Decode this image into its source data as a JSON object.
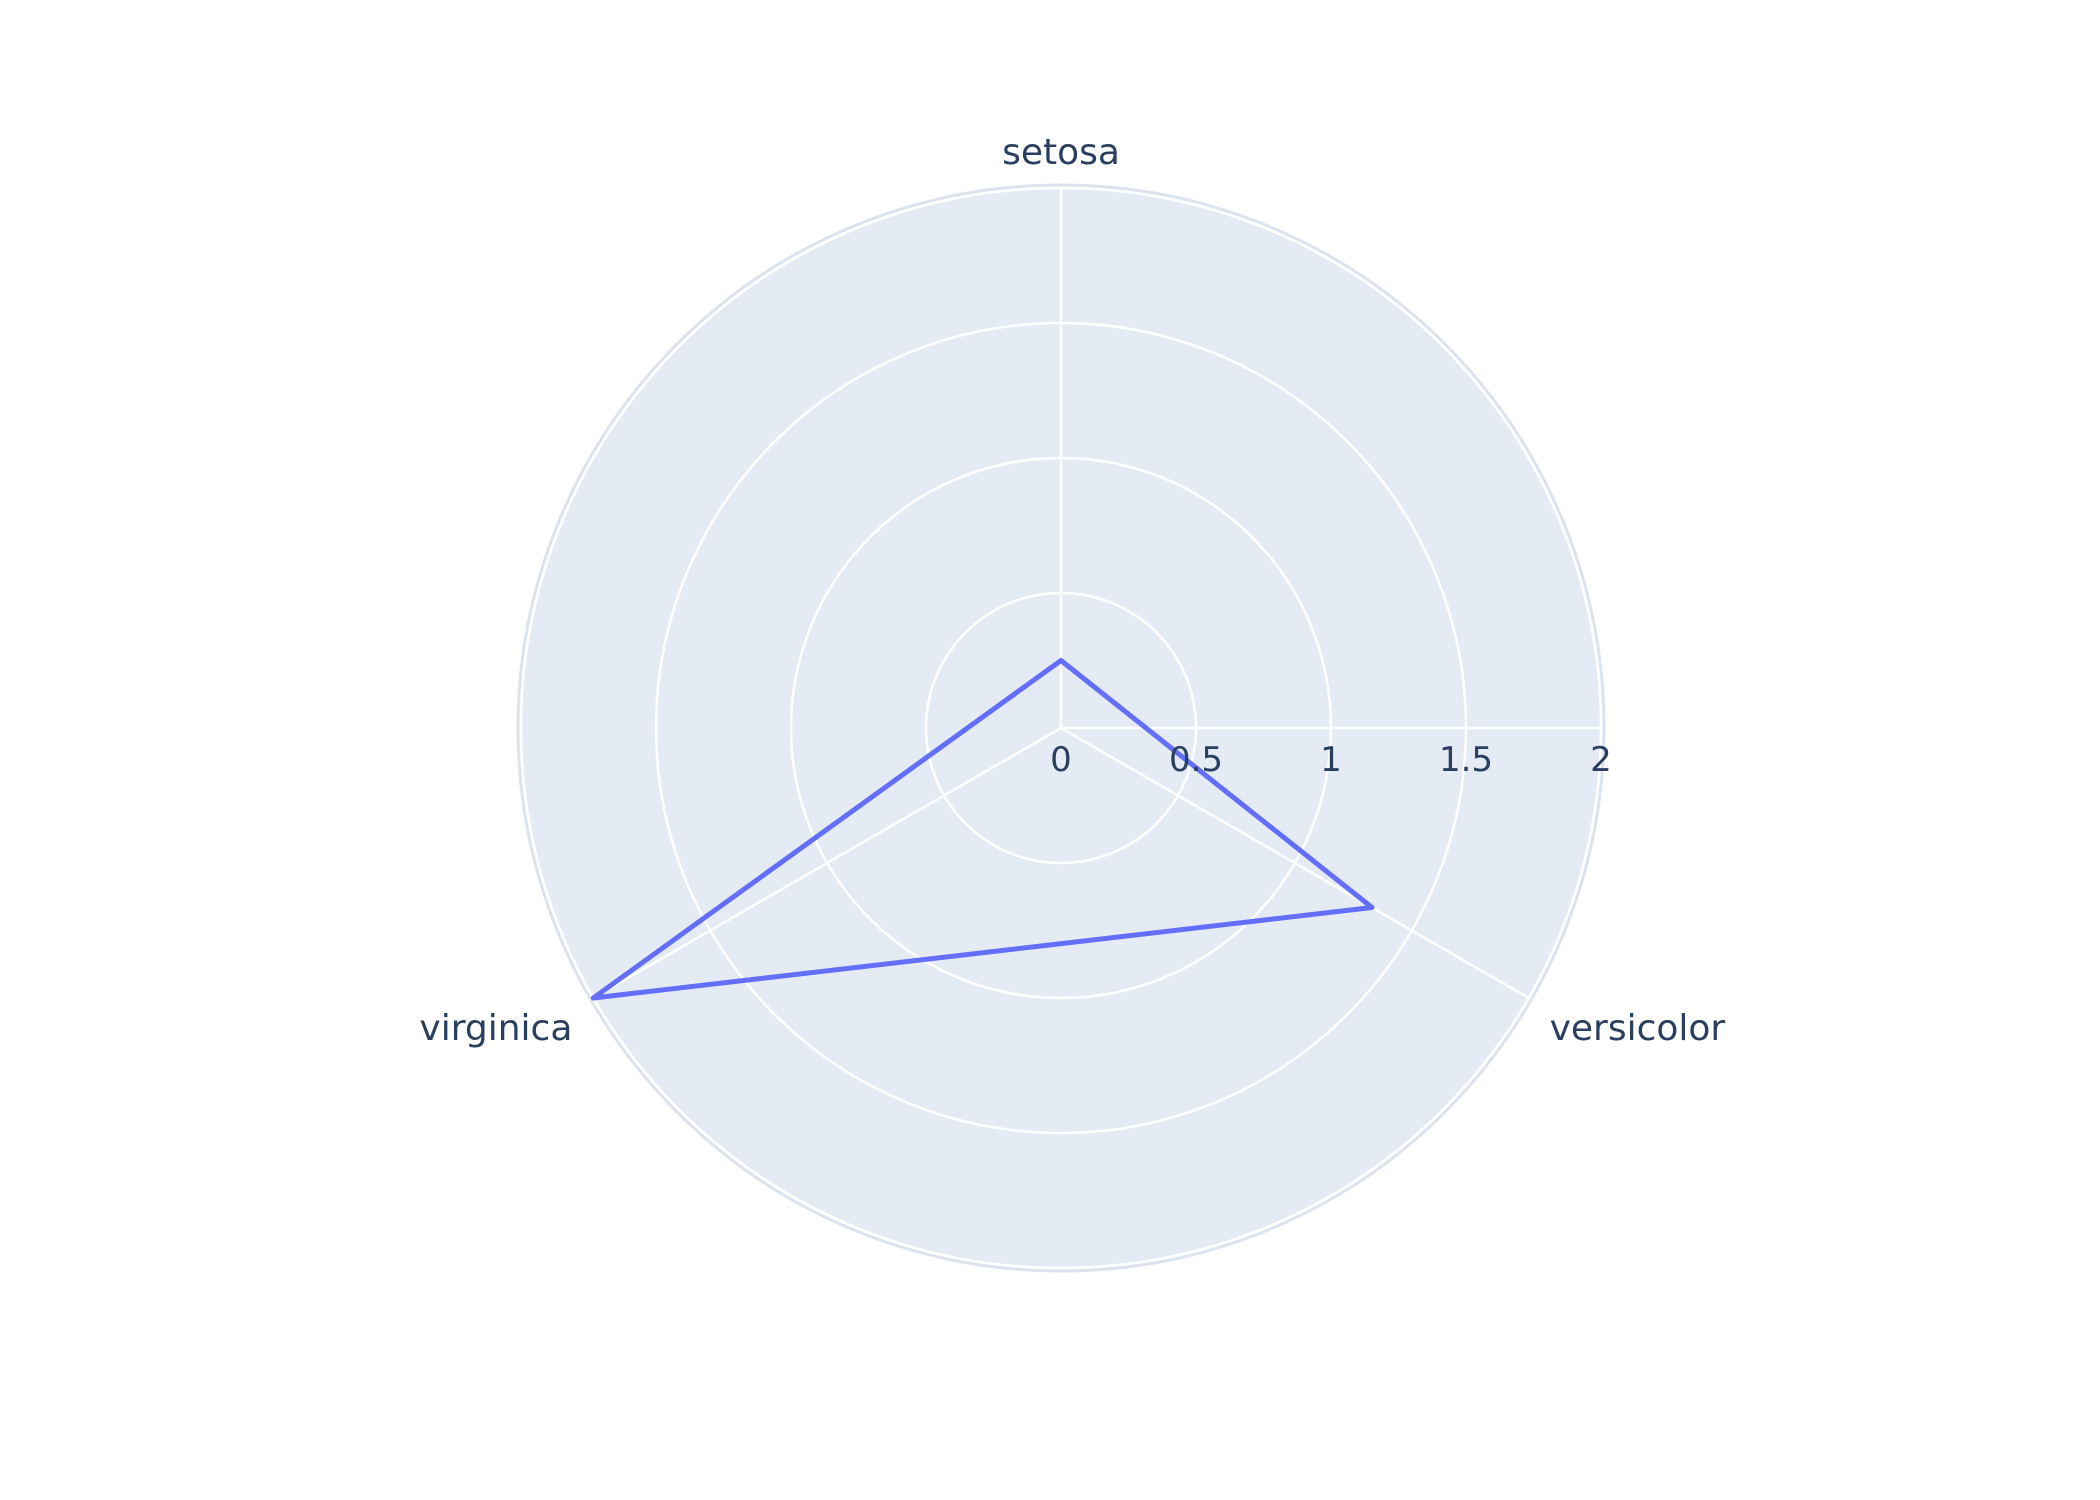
{
  "chart_data": {
    "type": "radar",
    "categories": [
      "setosa",
      "versicolor",
      "virginica"
    ],
    "series": [
      {
        "values": [
          0.25,
          1.33,
          2.0
        ],
        "color": "#636efa"
      }
    ],
    "radial_range": [
      0,
      2
    ],
    "radial_ticks": [
      "0",
      "0.5",
      "1",
      "1.5",
      "2"
    ],
    "grid": true,
    "background_color": "#e5ebf5",
    "grid_color": "#ffffff",
    "text_color": "#2a3f5f"
  }
}
